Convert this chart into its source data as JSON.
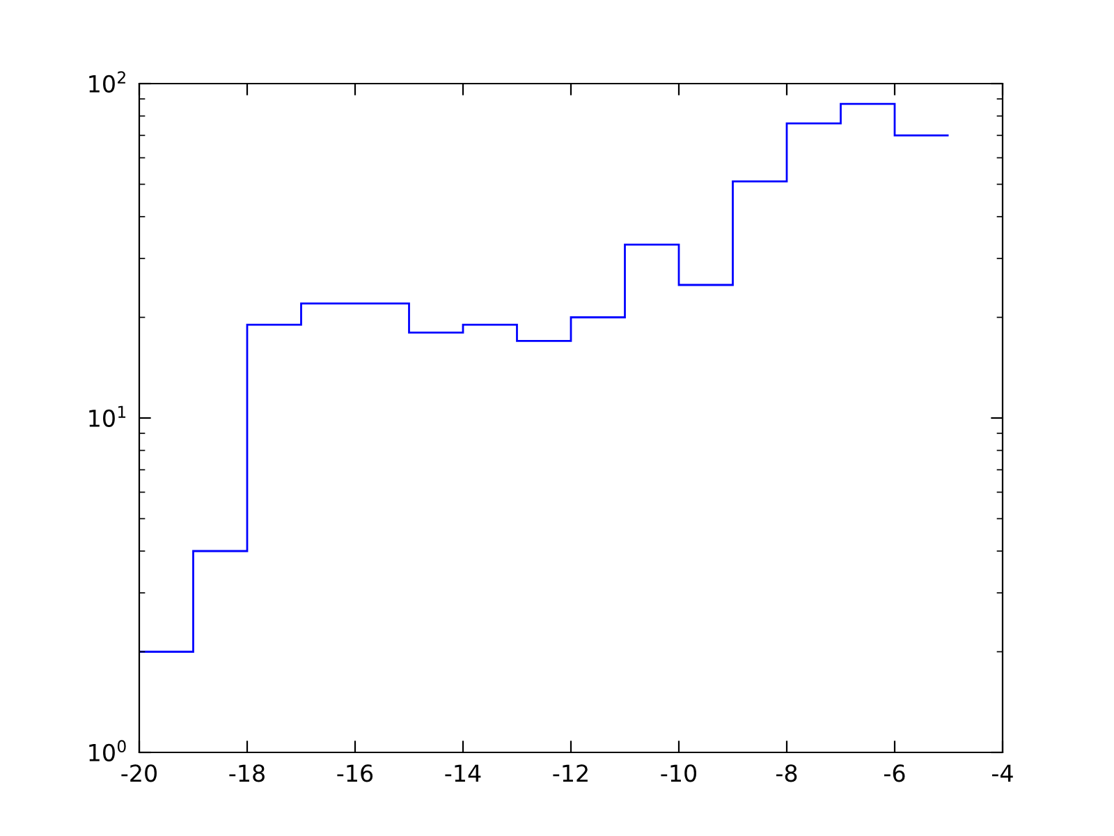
{
  "chart_data": {
    "type": "histogram",
    "color": "#0000ff",
    "bins": [
      -20,
      -19,
      -18,
      -17,
      -16,
      -15,
      -14,
      -13,
      -12,
      -11,
      -10,
      -9,
      -8,
      -7,
      -6,
      -5
    ],
    "values": [
      2,
      4,
      19,
      22,
      22,
      18,
      19,
      17,
      20,
      33,
      25,
      51,
      76,
      87,
      70
    ],
    "log": "y",
    "grid": false,
    "xlim": [
      -20,
      -4
    ],
    "xticks": [
      -20,
      -18,
      -16,
      -14,
      -12,
      -10,
      -8,
      -6,
      -4
    ],
    "ylim": [
      1,
      100
    ],
    "yticks": [
      {
        "value": 1,
        "label": "10$^{0}$"
      },
      {
        "value": 10,
        "label": "10$^{1}$"
      },
      {
        "value": 100,
        "label": "10$^{2}$"
      }
    ]
  }
}
